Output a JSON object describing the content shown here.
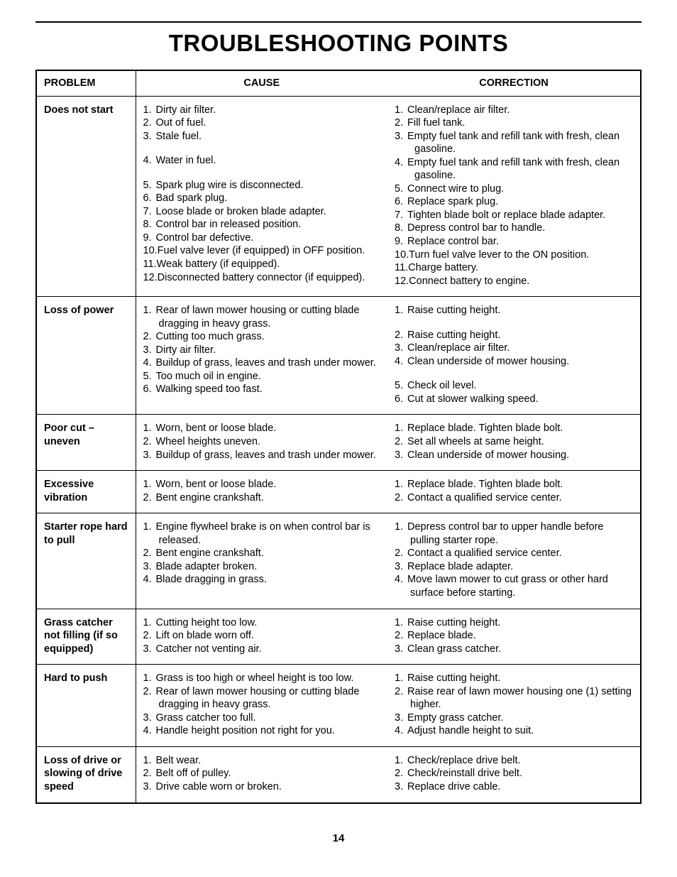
{
  "title": "TROUBLESHOOTING POINTS",
  "page_number": "14",
  "columns": {
    "problem": "PROBLEM",
    "cause": "CAUSE",
    "correction": "CORRECTION"
  },
  "rows": [
    {
      "problem": "Does not start",
      "causes": [
        "Dirty air filter.",
        "Out of fuel.",
        "Stale fuel.",
        "Water in fuel.",
        "Spark plug wire is disconnected.",
        "Bad spark plug.",
        "Loose blade or broken blade adapter.",
        "Control bar in released position.",
        "Control bar defective.",
        "Fuel valve lever (if equipped) in OFF position.",
        "Weak battery (if equipped).",
        "Disconnected battery connector (if equipped)."
      ],
      "corrections": [
        "Clean/replace air filter.",
        "Fill fuel tank.",
        "Empty fuel tank and refill tank with fresh, clean gasoline.",
        "Empty fuel tank and refill tank with fresh, clean gasoline.",
        "Connect wire to plug.",
        "Replace spark plug.",
        "Tighten blade bolt or replace blade adapter.",
        "Depress control bar to handle.",
        "Replace control bar.",
        "Turn fuel valve lever to the ON position.",
        "Charge battery.",
        "Connect battery to engine."
      ],
      "gap_after_cause": [
        3,
        4
      ],
      "gap_after_corr": []
    },
    {
      "problem": "Loss of power",
      "causes": [
        "Rear of lawn mower housing or cutting blade dragging in heavy grass.",
        "Cutting too much grass.",
        "Dirty air filter.",
        "Buildup of grass, leaves and trash under mower.",
        "Too much oil in engine.",
        "Walking speed too fast."
      ],
      "corrections": [
        "Raise cutting height.",
        "Raise cutting height.",
        "Clean/replace air filter.",
        "Clean underside of mower housing.",
        "Check oil level.",
        "Cut at slower walking speed."
      ],
      "gap_after_cause": [],
      "gap_after_corr": [
        1,
        4
      ]
    },
    {
      "problem": "Poor cut – uneven",
      "causes": [
        "Worn, bent or loose blade.",
        "Wheel heights uneven.",
        "Buildup of grass, leaves and trash under mower."
      ],
      "corrections": [
        "Replace blade. Tighten blade bolt.",
        "Set all wheels at same height.",
        "Clean underside of mower housing."
      ],
      "gap_after_cause": [],
      "gap_after_corr": []
    },
    {
      "problem": "Excessive vibration",
      "causes": [
        "Worn, bent or loose blade.",
        "Bent engine crankshaft."
      ],
      "corrections": [
        "Replace blade. Tighten blade bolt.",
        "Contact a qualified service center."
      ],
      "gap_after_cause": [],
      "gap_after_corr": []
    },
    {
      "problem": "Starter rope hard to pull",
      "causes": [
        "Engine flywheel brake is on when control bar is released.",
        "Bent engine crankshaft.",
        "Blade adapter broken.",
        "Blade dragging in grass."
      ],
      "corrections": [
        "Depress control bar to upper handle before pulling starter rope.",
        "Contact a qualified service center.",
        "Replace blade adapter.",
        "Move lawn mower to cut grass or other hard surface before starting."
      ],
      "gap_after_cause": [],
      "gap_after_corr": []
    },
    {
      "problem": "Grass catcher not filling (if so equipped)",
      "causes": [
        "Cutting height too low.",
        "Lift on blade worn off.",
        "Catcher not venting air."
      ],
      "corrections": [
        "Raise cutting height.",
        "Replace blade.",
        "Clean grass catcher."
      ],
      "gap_after_cause": [],
      "gap_after_corr": []
    },
    {
      "problem": "Hard to push",
      "causes": [
        "Grass is too high or wheel height is too low.",
        "Rear of lawn mower housing or cutting blade dragging in heavy grass.",
        "Grass catcher too full.",
        "Handle height position not right for you."
      ],
      "corrections": [
        "Raise cutting height.",
        "Raise rear of lawn mower housing one (1) setting higher.",
        "Empty grass catcher.",
        "Adjust handle height to suit."
      ],
      "gap_after_cause": [],
      "gap_after_corr": []
    },
    {
      "problem": "Loss of drive or slowing of drive speed",
      "causes": [
        "Belt wear.",
        "Belt off of pulley.",
        "Drive cable worn or broken."
      ],
      "corrections": [
        "Check/replace drive belt.",
        "Check/reinstall drive belt.",
        "Replace drive cable."
      ],
      "gap_after_cause": [],
      "gap_after_corr": []
    }
  ]
}
